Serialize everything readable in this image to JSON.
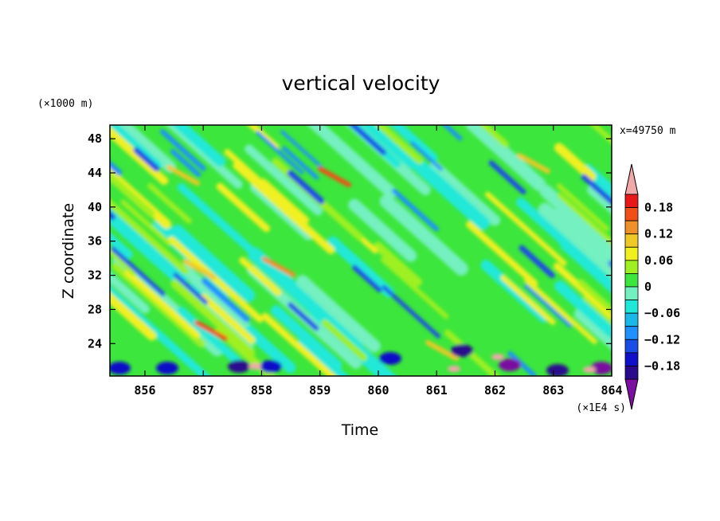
{
  "chart_data": {
    "type": "heatmap",
    "title": "vertical velocity",
    "xlabel": "Time",
    "ylabel": "Z coordinate",
    "x_unit": "(×1E4 s)",
    "y_unit": "(×1000 m)",
    "annotation": "x=49750 m",
    "xlim": [
      855.4,
      864.0
    ],
    "ylim": [
      20.2,
      49.6
    ],
    "x_ticks": [
      856,
      857,
      858,
      859,
      860,
      861,
      862,
      863,
      864
    ],
    "y_ticks": [
      24,
      28,
      32,
      36,
      40,
      44,
      48
    ],
    "colorbar": {
      "levels": [
        -0.21,
        -0.18,
        -0.15,
        -0.12,
        -0.09,
        -0.06,
        -0.03,
        0,
        0.03,
        0.06,
        0.09,
        0.12,
        0.15,
        0.18,
        0.21
      ],
      "labels": [
        "0.18",
        "0.12",
        "0.06",
        "0",
        "−0.06",
        "−0.12",
        "−0.18"
      ],
      "label_values": [
        0.18,
        0.12,
        0.06,
        0,
        -0.06,
        -0.12,
        -0.18
      ],
      "colors": [
        "#7a0fa0",
        "#2a0a8c",
        "#1010c8",
        "#1a4ce6",
        "#1e90ff",
        "#19b8e8",
        "#20e8d8",
        "#74f0c0",
        "#3ce63c",
        "#9ef020",
        "#f0f020",
        "#f0c828",
        "#f09028",
        "#f05018",
        "#e81818",
        "#f0a8a8"
      ]
    },
    "field_description": "Diagonal bands of alternating positive and negative vertical velocity sloping downward from upper-left to lower-right; strongest anomalies near the bottom boundary around 861–862."
  }
}
